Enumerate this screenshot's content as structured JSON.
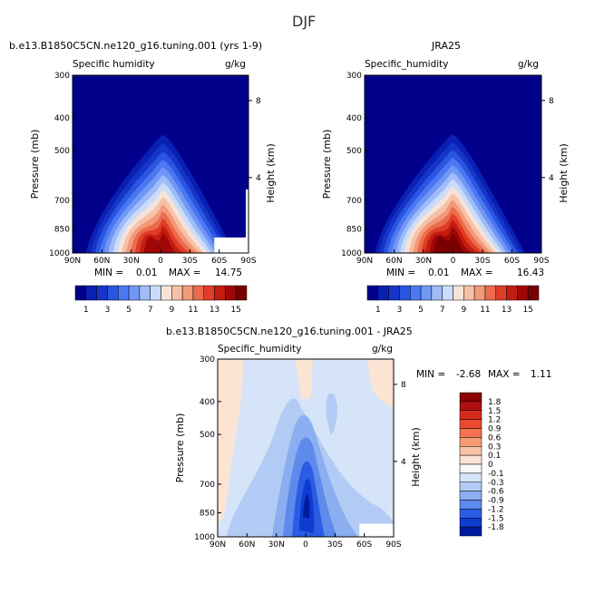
{
  "figure": {
    "season": "DJF"
  },
  "panels": [
    {
      "title": "b.e13.B1850C5CN.ne120_g16.tuning.001 (yrs 1-9)",
      "variable": "Specific humidity",
      "units": "g/kg",
      "min_label": "MIN =",
      "min_value": "0.01",
      "max_label": "MAX =",
      "max_value": "14.75"
    },
    {
      "title": "JRA25",
      "variable": "Specific_humidity",
      "units": "g/kg",
      "min_label": "MIN =",
      "min_value": "0.01",
      "max_label": "MAX =",
      "max_value": "16.43"
    },
    {
      "title": "b.e13.B1850C5CN.ne120_g16.tuning.001 - JRA25",
      "variable": "Specific_humidity",
      "units": "g/kg",
      "min_label": "MIN =",
      "min_value": "-2.68",
      "max_label": "MAX =",
      "max_value": "1.11"
    }
  ],
  "chart_data": [
    {
      "type": "contour",
      "title": "b.e13.B1850C5CN.ne120_g16.tuning.001 (yrs 1-9)",
      "subtitle": "Specific humidity",
      "units": "g/kg",
      "xlabel": "",
      "ylabel": "Pressure (mb)",
      "y2label": "Height (km)",
      "x_ticks": [
        "90N",
        "60N",
        "30N",
        "0",
        "30S",
        "60S",
        "90S"
      ],
      "x_range": [
        90,
        -90
      ],
      "y_ticks": [
        300,
        400,
        500,
        700,
        850,
        1000
      ],
      "y_range": [
        300,
        1000
      ],
      "y_scale": "log",
      "y2_ticks": [
        4,
        8
      ],
      "levels": [
        1,
        2,
        3,
        4,
        5,
        6,
        7,
        8,
        9,
        10,
        11,
        12,
        13,
        14,
        15
      ],
      "max_center_lat": -5,
      "peak": 14.75,
      "min": 0.01
    },
    {
      "type": "contour",
      "title": "JRA25",
      "subtitle": "Specific_humidity",
      "units": "g/kg",
      "xlabel": "",
      "ylabel": "Pressure (mb)",
      "y2label": "Height (km)",
      "x_ticks": [
        "90N",
        "60N",
        "30N",
        "0",
        "30S",
        "60S",
        "90S"
      ],
      "x_range": [
        90,
        -90
      ],
      "y_ticks": [
        300,
        400,
        500,
        700,
        850,
        1000
      ],
      "y_range": [
        300,
        1000
      ],
      "y_scale": "log",
      "y2_ticks": [
        4,
        8
      ],
      "levels": [
        1,
        2,
        3,
        4,
        5,
        6,
        7,
        8,
        9,
        10,
        11,
        12,
        13,
        14,
        15
      ],
      "max_center_lat": -2,
      "peak": 16.43,
      "min": 0.01
    },
    {
      "type": "contour",
      "title": "b.e13.B1850C5CN.ne120_g16.tuning.001 - JRA25",
      "subtitle": "Specific_humidity",
      "units": "g/kg",
      "xlabel": "",
      "ylabel": "Pressure (mb)",
      "y2label": "Height (km)",
      "x_ticks": [
        "90N",
        "60N",
        "30N",
        "0",
        "30S",
        "60S",
        "90S"
      ],
      "x_range": [
        90,
        -90
      ],
      "y_ticks": [
        300,
        400,
        500,
        700,
        850,
        1000
      ],
      "y_range": [
        300,
        1000
      ],
      "y_scale": "log",
      "y2_ticks": [
        4,
        8
      ],
      "levels": [
        -1.8,
        -1.5,
        -1.2,
        -0.9,
        -0.6,
        -0.3,
        -0.1,
        0,
        0.1,
        0.3,
        0.6,
        0.9,
        1.2,
        1.5,
        1.8
      ],
      "min": -2.68,
      "max": 1.11
    }
  ],
  "colorbar_abs": {
    "labels": [
      "1",
      "3",
      "5",
      "7",
      "9",
      "11",
      "13",
      "15"
    ],
    "colors": [
      "#00008b",
      "#0a1fb4",
      "#1535c8",
      "#2a55e0",
      "#4a78f2",
      "#7197f5",
      "#9fbcf8",
      "#cadcfa",
      "#f6e3d8",
      "#f7c1a8",
      "#f29a78",
      "#ec6b4d",
      "#df3d26",
      "#c41d10",
      "#a00808",
      "#7a0000"
    ]
  },
  "colorbar_diff": {
    "labels": [
      "1.8",
      "1.5",
      "1.2",
      "0.9",
      "0.6",
      "0.3",
      "0.1",
      "0",
      "-0.1",
      "-0.3",
      "-0.6",
      "-0.9",
      "-1.2",
      "-1.5",
      "-1.8"
    ],
    "colors": [
      "#8b0000",
      "#b01010",
      "#d42a1c",
      "#ec4a30",
      "#f4724f",
      "#f79b77",
      "#f8c3a6",
      "#fbe4d4",
      "#f7f7f7",
      "#d5e4f8",
      "#b2cbf4",
      "#8aaeef",
      "#5e8aec",
      "#2a5ce4",
      "#0f3cd0",
      "#001a9e"
    ]
  }
}
